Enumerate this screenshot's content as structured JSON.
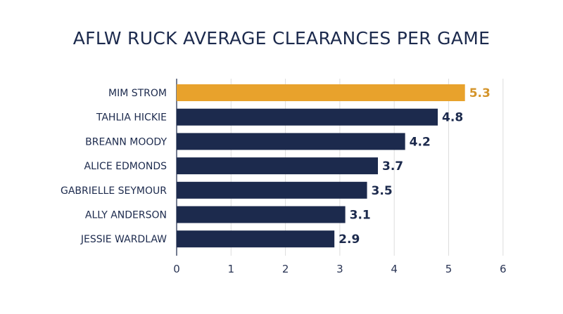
{
  "chart_data": {
    "type": "bar",
    "orientation": "horizontal",
    "title": "AFLW RUCK AVERAGE CLEARANCES PER GAME",
    "categories": [
      "MIM STROM",
      "TAHLIA HICKIE",
      "BREANN MOODY",
      "ALICE EDMONDS",
      "GABRIELLE SEYMOUR",
      "ALLY ANDERSON",
      "JESSIE WARDLAW"
    ],
    "values": [
      5.3,
      4.8,
      4.2,
      3.7,
      3.5,
      3.1,
      2.9
    ],
    "value_labels": [
      "5.3",
      "4.8",
      "4.2",
      "3.7",
      "3.5",
      "3.1",
      "2.9"
    ],
    "xlim": [
      0,
      6
    ],
    "x_ticks": [
      0,
      1,
      2,
      3,
      4,
      5,
      6
    ],
    "grid": "vertical",
    "legend": "none",
    "colors": {
      "highlight": "#e8a22c",
      "bar": "#1c2a4d",
      "highlight_label": "#d4942a",
      "label": "#1c2a4d",
      "grid": "#dddddd",
      "axis": "#2a3555"
    },
    "highlight_index": 0
  }
}
